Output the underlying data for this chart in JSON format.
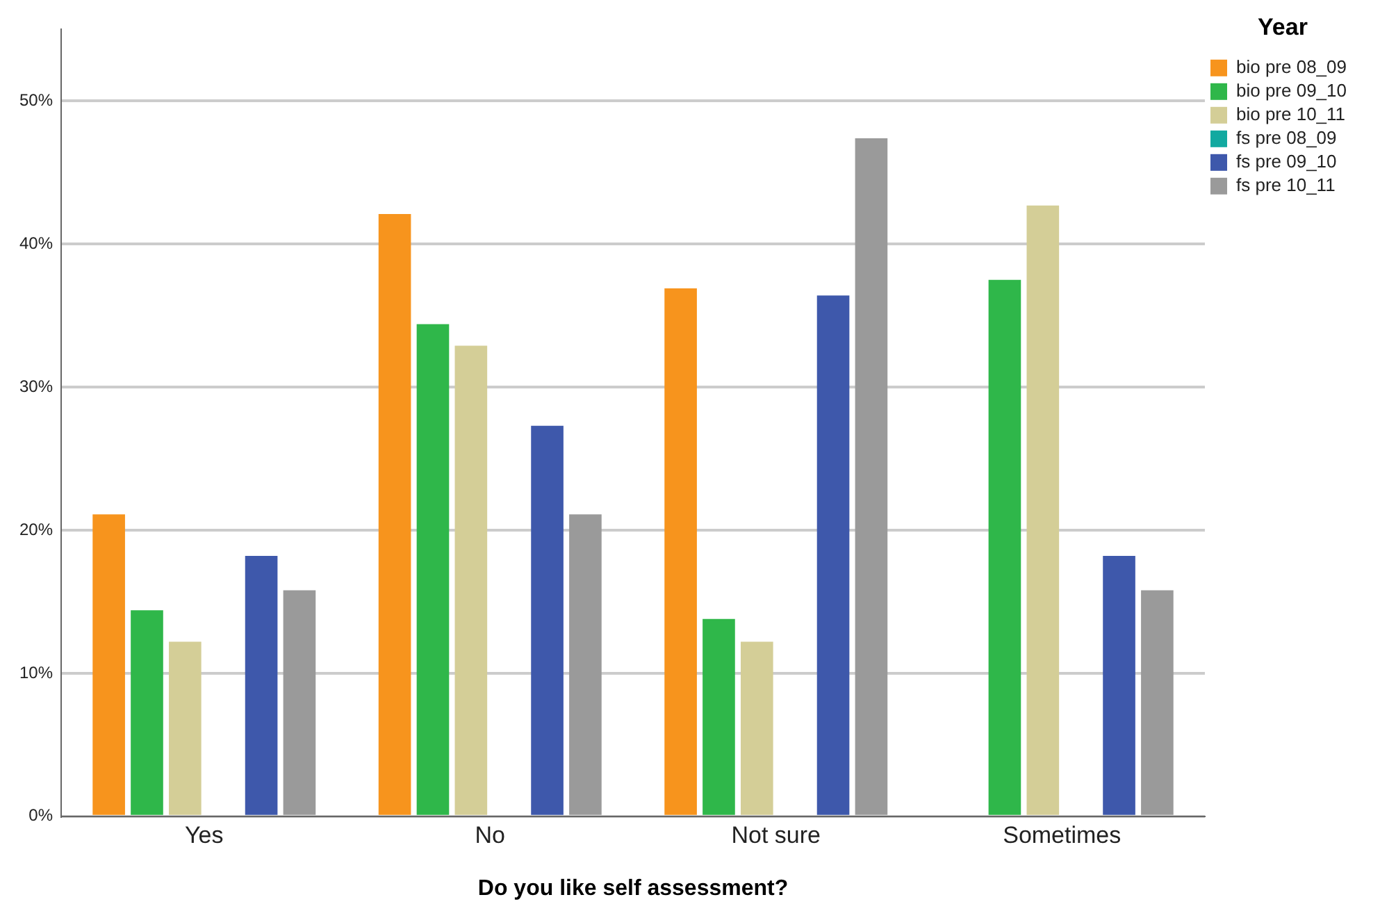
{
  "chart_data": {
    "type": "bar",
    "xlabel": "Do you like self assessment?",
    "legend_title": "Year",
    "categories": [
      "Yes",
      "No",
      "Not sure",
      "Sometimes"
    ],
    "series": [
      {
        "name": "bio pre 08_09",
        "color": "#f7941d",
        "values": [
          21.1,
          42.1,
          36.9,
          null
        ]
      },
      {
        "name": "bio pre 09_10",
        "color": "#2fb74a",
        "values": [
          14.4,
          34.4,
          13.8,
          37.5
        ]
      },
      {
        "name": "bio pre 10_11",
        "color": "#d4ce97",
        "values": [
          12.2,
          32.9,
          12.2,
          42.7
        ]
      },
      {
        "name": "fs pre 08_09",
        "color": "#12a9a0",
        "values": [
          null,
          null,
          null,
          null
        ]
      },
      {
        "name": "fs pre 09_10",
        "color": "#3e58ab",
        "values": [
          18.2,
          27.3,
          36.4,
          18.2
        ]
      },
      {
        "name": "fs pre 10_11",
        "color": "#9a9a9a",
        "values": [
          15.8,
          21.1,
          47.4,
          15.8
        ]
      }
    ],
    "ylim": [
      0,
      55
    ],
    "yticks": [
      {
        "value": 0,
        "label": "0%"
      },
      {
        "value": 10,
        "label": "10%"
      },
      {
        "value": 20,
        "label": "20%"
      },
      {
        "value": 30,
        "label": "30%"
      },
      {
        "value": 40,
        "label": "40%"
      },
      {
        "value": 50,
        "label": "50%"
      }
    ],
    "grid": "y",
    "legend": "top right"
  }
}
